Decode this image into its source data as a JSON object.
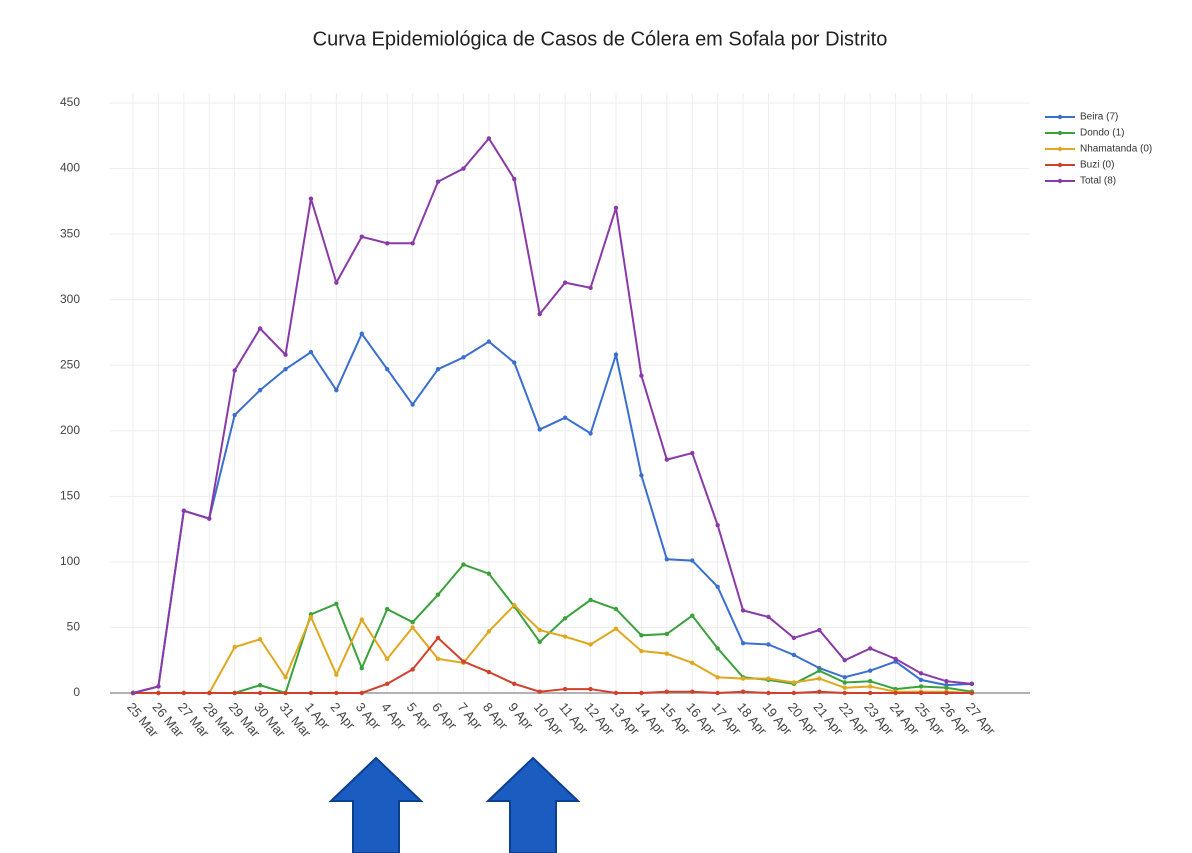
{
  "chart_data": {
    "type": "line",
    "title": "Curva Epidemiológica de Casos de Cólera em Sofala por Distrito",
    "categories": [
      "25 Mar",
      "26 Mar",
      "27 Mar",
      "28 Mar",
      "29 Mar",
      "30 Mar",
      "31 Mar",
      "1 Apr",
      "2 Apr",
      "3 Apr",
      "4 Apr",
      "5 Apr",
      "6 Apr",
      "7 Apr",
      "8 Apr",
      "9 Apr",
      "10 Apr",
      "11 Apr",
      "12 Apr",
      "13 Apr",
      "14 Apr",
      "15 Apr",
      "16 Apr",
      "17 Apr",
      "18 Apr",
      "19 Apr",
      "20 Apr",
      "21 Apr",
      "22 Apr",
      "23 Apr",
      "24 Apr",
      "25 Apr",
      "26 Apr",
      "27 Apr"
    ],
    "series": [
      {
        "name": "Beira (7)",
        "color": "#3a6fd0",
        "values": [
          0,
          5,
          139,
          133,
          212,
          231,
          247,
          260,
          231,
          274,
          247,
          220,
          247,
          256,
          268,
          252,
          201,
          210,
          198,
          258,
          166,
          102,
          101,
          81,
          38,
          37,
          29,
          19,
          12,
          17,
          24,
          10,
          6,
          7
        ]
      },
      {
        "name": "Dondo (1)",
        "color": "#3aa23a",
        "values": [
          0,
          0,
          0,
          0,
          0,
          6,
          0,
          60,
          68,
          19,
          64,
          54,
          75,
          98,
          91,
          66,
          39,
          57,
          71,
          64,
          44,
          45,
          59,
          34,
          12,
          10,
          7,
          17,
          8,
          9,
          3,
          5,
          4,
          1
        ]
      },
      {
        "name": "Nhamatanda (0)",
        "color": "#e0a820",
        "values": [
          0,
          0,
          0,
          0,
          35,
          41,
          12,
          58,
          14,
          56,
          26,
          50,
          26,
          23,
          47,
          67,
          48,
          43,
          37,
          49,
          32,
          30,
          23,
          12,
          11,
          11,
          8,
          11,
          4,
          5,
          1,
          1,
          1,
          0
        ]
      },
      {
        "name": "Buzi (0)",
        "color": "#d0402a",
        "values": [
          0,
          0,
          0,
          0,
          0,
          0,
          0,
          0,
          0,
          0,
          7,
          18,
          42,
          24,
          16,
          7,
          1,
          3,
          3,
          0,
          0,
          1,
          1,
          0,
          1,
          0,
          0,
          1,
          0,
          0,
          0,
          0,
          0,
          0
        ]
      },
      {
        "name": "Total (8)",
        "color": "#8a3aa8",
        "values": [
          0,
          5,
          139,
          133,
          246,
          278,
          258,
          377,
          313,
          348,
          343,
          343,
          390,
          400,
          423,
          392,
          289,
          313,
          309,
          370,
          242,
          178,
          183,
          128,
          63,
          58,
          42,
          48,
          25,
          34,
          26,
          15,
          9,
          7
        ]
      }
    ],
    "ylim": [
      0,
      450
    ],
    "yticks": [
      0,
      50,
      100,
      150,
      200,
      250,
      300,
      350,
      400,
      450
    ],
    "grid": true,
    "legend": "right"
  }
}
